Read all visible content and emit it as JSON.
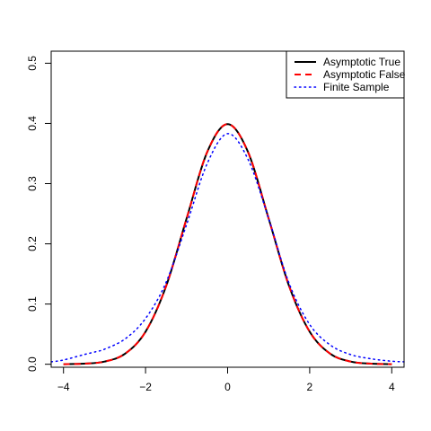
{
  "chart_data": {
    "type": "line",
    "title": "",
    "xlabel": "",
    "ylabel": "",
    "xlim": [
      -4.3,
      4.3
    ],
    "ylim": [
      -0.005,
      0.52
    ],
    "x_ticks": [
      -4,
      -2,
      0,
      2,
      4
    ],
    "x_tick_labels": [
      "−4",
      "−2",
      "0",
      "2",
      "4"
    ],
    "y_ticks": [
      0.0,
      0.1,
      0.2,
      0.3,
      0.4,
      0.5
    ],
    "y_tick_labels": [
      "0.0",
      "0.1",
      "0.2",
      "0.3",
      "0.4",
      "0.5"
    ],
    "grid": false,
    "legend_position": "top-right",
    "series": [
      {
        "name": "Asymptotic True",
        "color": "#000000",
        "dash": "solid",
        "x": [
          -4.0,
          -3.5,
          -3.0,
          -2.5,
          -2.0,
          -1.5,
          -1.0,
          -0.5,
          0.0,
          0.5,
          1.0,
          1.5,
          2.0,
          2.5,
          3.0,
          3.5,
          4.0
        ],
        "values": [
          0.0001,
          0.0009,
          0.0044,
          0.0175,
          0.054,
          0.1295,
          0.242,
          0.3521,
          0.3989,
          0.3521,
          0.242,
          0.1295,
          0.054,
          0.0175,
          0.0044,
          0.0009,
          0.0001
        ]
      },
      {
        "name": "Asymptotic False",
        "color": "#ff0000",
        "dash": "dashed",
        "x": [
          -4.0,
          -3.5,
          -3.0,
          -2.5,
          -2.0,
          -1.5,
          -1.0,
          -0.5,
          0.0,
          0.5,
          1.0,
          1.5,
          2.0,
          2.5,
          3.0,
          3.5,
          4.0
        ],
        "values": [
          0.0001,
          0.0009,
          0.0044,
          0.0175,
          0.054,
          0.1295,
          0.242,
          0.3521,
          0.3989,
          0.3521,
          0.242,
          0.1295,
          0.054,
          0.0175,
          0.0044,
          0.0009,
          0.0001
        ]
      },
      {
        "name": "Finite Sample",
        "color": "#0000ff",
        "dash": "dotted",
        "x": [
          -4.3,
          -4.0,
          -3.5,
          -3.2,
          -3.0,
          -2.5,
          -2.0,
          -1.5,
          -1.0,
          -0.5,
          0.0,
          0.5,
          1.0,
          1.5,
          2.0,
          2.5,
          3.0,
          3.5,
          4.0,
          4.3
        ],
        "values": [
          0.004,
          0.007,
          0.016,
          0.021,
          0.025,
          0.042,
          0.076,
          0.136,
          0.232,
          0.333,
          0.383,
          0.34,
          0.242,
          0.134,
          0.066,
          0.032,
          0.016,
          0.009,
          0.005,
          0.004
        ]
      }
    ]
  }
}
